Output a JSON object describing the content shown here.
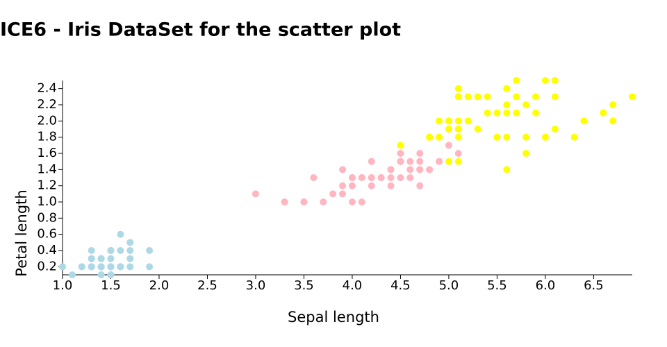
{
  "chart_data": {
    "type": "scatter",
    "title": "ICE6 - Iris DataSet for the scatter plot",
    "xlabel": "Sepal length",
    "ylabel": "Petal length",
    "xlim": [
      1.0,
      6.9
    ],
    "ylim": [
      0.1,
      2.5
    ],
    "xticks": [
      {
        "value": 1,
        "label": "1.0"
      },
      1.5,
      {
        "value": 2,
        "label": "2.0"
      },
      2.5,
      {
        "value": 3,
        "label": "3.0"
      },
      3.5,
      {
        "value": 4,
        "label": "4.0"
      },
      4.5,
      {
        "value": 5,
        "label": "5.0"
      },
      5.5,
      {
        "value": 6,
        "label": "6.0"
      },
      6.5
    ],
    "yticks": [
      0.2,
      0.4,
      0.6,
      0.8,
      {
        "value": 1,
        "label": "1.0"
      },
      1.2,
      1.4,
      1.6,
      1.8,
      {
        "value": 2,
        "label": "2.0"
      },
      2.2,
      2.4
    ],
    "series": [
      {
        "color": "#add8e6",
        "x": [
          1.4,
          1.4,
          1.3,
          1.5,
          1.4,
          1.7,
          1.4,
          1.5,
          1.4,
          1.5,
          1.5,
          1.6,
          1.4,
          1.1,
          1.2,
          1.5,
          1.3,
          1.4,
          1.7,
          1.5,
          1.7,
          1.5,
          1.0,
          1.7,
          1.9,
          1.6,
          1.6,
          1.5,
          1.4,
          1.6,
          1.6,
          1.5,
          1.5,
          1.4,
          1.5,
          1.2,
          1.3,
          1.4,
          1.3,
          1.5,
          1.3,
          1.3,
          1.3,
          1.6,
          1.9,
          1.4,
          1.6,
          1.4,
          1.5,
          1.4
        ],
        "y": [
          0.2,
          0.2,
          0.2,
          0.2,
          0.2,
          0.4,
          0.3,
          0.2,
          0.2,
          0.1,
          0.2,
          0.2,
          0.1,
          0.1,
          0.2,
          0.4,
          0.4,
          0.3,
          0.3,
          0.3,
          0.2,
          0.4,
          0.2,
          0.5,
          0.2,
          0.2,
          0.4,
          0.2,
          0.2,
          0.2,
          0.2,
          0.4,
          0.1,
          0.2,
          0.2,
          0.2,
          0.2,
          0.1,
          0.2,
          0.2,
          0.3,
          0.3,
          0.2,
          0.6,
          0.4,
          0.3,
          0.2,
          0.2,
          0.2,
          0.2
        ]
      },
      {
        "color": "#ffb6c1",
        "x": [
          4.7,
          4.5,
          4.9,
          4.0,
          4.6,
          4.5,
          4.7,
          3.3,
          4.6,
          3.9,
          3.5,
          4.2,
          4.0,
          4.7,
          3.6,
          4.4,
          4.5,
          4.1,
          4.5,
          3.9,
          4.8,
          4.0,
          4.9,
          4.7,
          4.3,
          4.4,
          4.8,
          5.0,
          4.5,
          3.5,
          3.8,
          3.7,
          3.9,
          5.1,
          4.5,
          4.5,
          4.7,
          4.4,
          4.1,
          4.0,
          4.4,
          4.6,
          4.0,
          3.3,
          4.2,
          4.2,
          4.2,
          4.3,
          3.0,
          4.1
        ],
        "y": [
          1.4,
          1.5,
          1.5,
          1.3,
          1.5,
          1.3,
          1.6,
          1.0,
          1.3,
          1.4,
          1.0,
          1.5,
          1.0,
          1.4,
          1.3,
          1.4,
          1.5,
          1.0,
          1.5,
          1.1,
          1.8,
          1.3,
          1.5,
          1.2,
          1.3,
          1.4,
          1.4,
          1.7,
          1.5,
          1.0,
          1.1,
          1.0,
          1.2,
          1.6,
          1.5,
          1.6,
          1.5,
          1.3,
          1.3,
          1.3,
          1.2,
          1.4,
          1.2,
          1.0,
          1.3,
          1.2,
          1.3,
          1.3,
          1.1,
          1.3
        ]
      },
      {
        "color": "#ffff00",
        "x": [
          6.0,
          5.1,
          5.9,
          5.6,
          5.8,
          6.6,
          4.5,
          6.3,
          5.8,
          6.1,
          5.1,
          5.3,
          5.5,
          5.0,
          5.1,
          5.3,
          5.5,
          6.7,
          6.9,
          5.0,
          5.7,
          4.9,
          6.7,
          4.9,
          5.7,
          6.0,
          4.8,
          4.9,
          5.6,
          5.8,
          6.1,
          6.4,
          5.6,
          5.1,
          5.6,
          6.1,
          5.6,
          5.5,
          4.8,
          5.4,
          5.6,
          5.1,
          5.1,
          5.9,
          5.7,
          5.2,
          5.0,
          5.2,
          5.4,
          5.1
        ],
        "y": [
          2.5,
          1.9,
          2.1,
          1.8,
          2.2,
          2.1,
          1.7,
          1.8,
          1.8,
          2.5,
          2.0,
          1.9,
          2.1,
          2.0,
          2.4,
          2.3,
          1.8,
          2.2,
          2.3,
          1.5,
          2.3,
          2.0,
          2.0,
          1.8,
          2.1,
          1.8,
          1.8,
          1.8,
          2.1,
          1.6,
          1.9,
          2.0,
          2.2,
          1.5,
          1.4,
          2.3,
          2.4,
          1.8,
          1.8,
          2.1,
          2.4,
          2.3,
          1.9,
          2.3,
          2.5,
          2.3,
          1.9,
          2.0,
          2.3,
          1.8
        ]
      }
    ]
  }
}
